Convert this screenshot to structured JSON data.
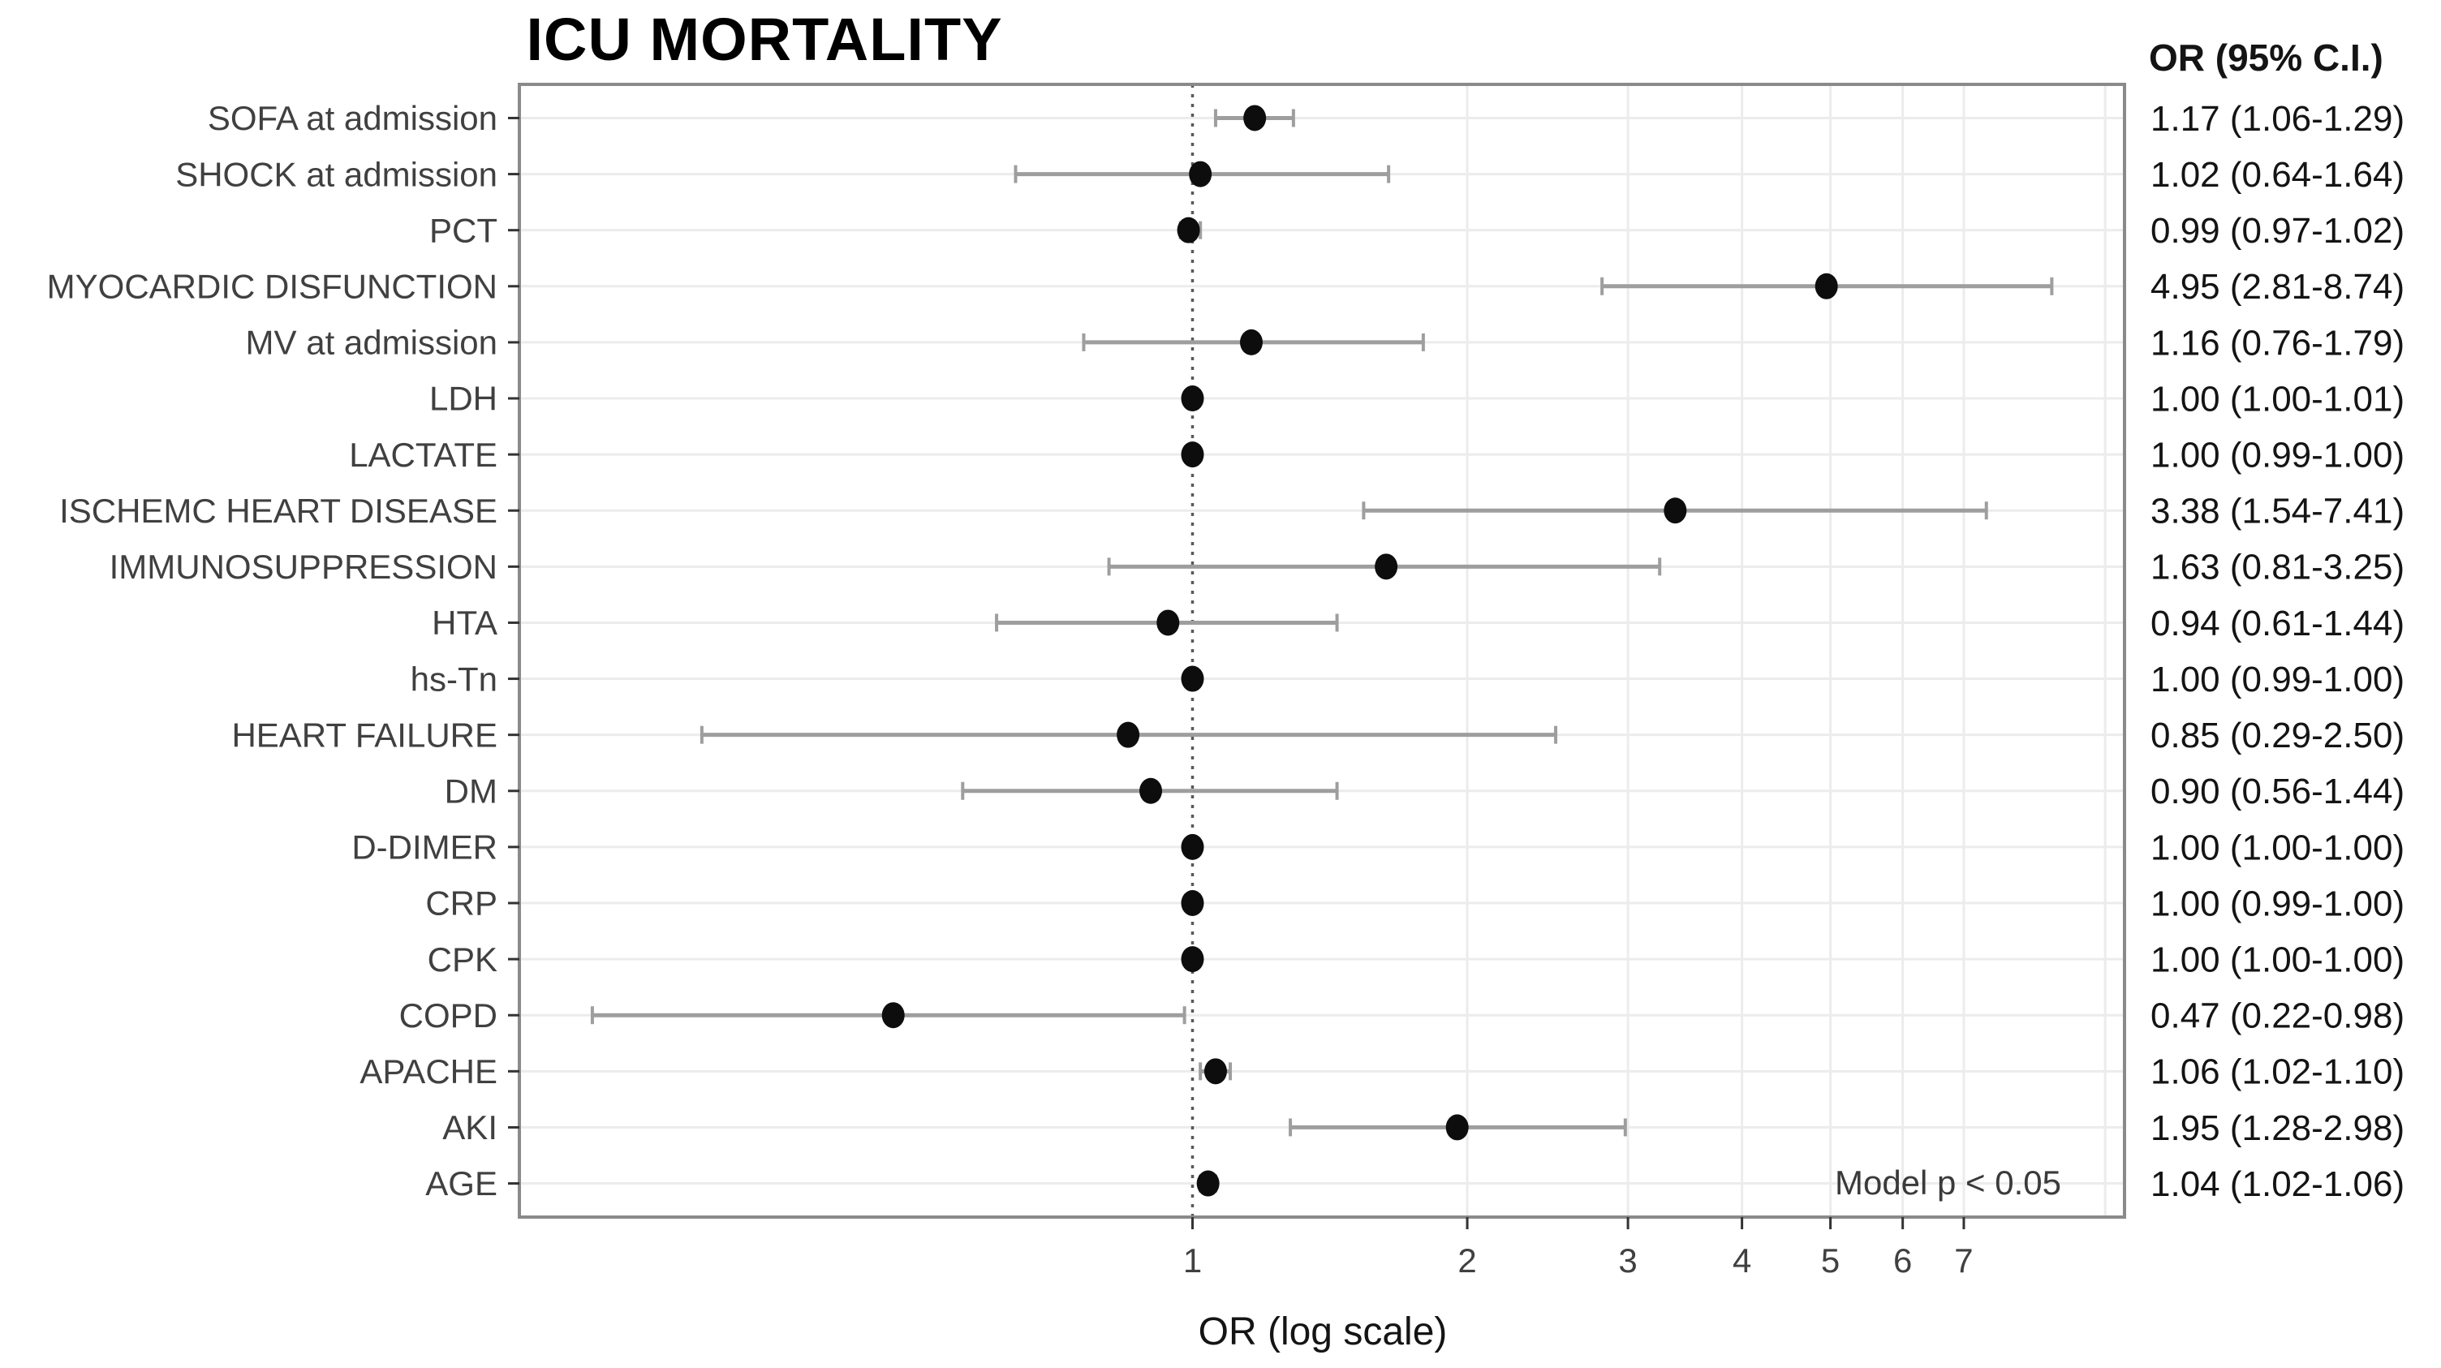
{
  "figure": {
    "title": "ICU MORTALITY",
    "x_axis_label": "OR (log scale)",
    "or_column_header": "OR (95% C.I.)",
    "model_annotation": "Model p < 0.05"
  },
  "chart_data": {
    "type": "scatter",
    "subtype": "forest-plot",
    "title": "ICU MORTALITY",
    "xlabel": "OR (log scale)",
    "ylabel": "",
    "x_scale": "log10",
    "xlim": [
      0.183,
      10.5
    ],
    "x_ticks": [
      1,
      2,
      3,
      4,
      5,
      6,
      7
    ],
    "vertical_gridlines": [
      2,
      3,
      4,
      5,
      6,
      7,
      10
    ],
    "reference_line": 1,
    "grid": true,
    "legend": "none",
    "or_column_header": "OR (95% C.I.)",
    "annotation": "Model p < 0.05",
    "rows": [
      {
        "label": "SOFA at admission",
        "or": 1.17,
        "ci_low": 1.06,
        "ci_high": 1.29,
        "display": "1.17 (1.06-1.29)"
      },
      {
        "label": "SHOCK at admission",
        "or": 1.02,
        "ci_low": 0.64,
        "ci_high": 1.64,
        "display": "1.02 (0.64-1.64)"
      },
      {
        "label": "PCT",
        "or": 0.99,
        "ci_low": 0.97,
        "ci_high": 1.02,
        "display": "0.99 (0.97-1.02)"
      },
      {
        "label": "MYOCARDIC DISFUNCTION",
        "or": 4.95,
        "ci_low": 2.81,
        "ci_high": 8.74,
        "display": "4.95 (2.81-8.74)"
      },
      {
        "label": "MV at admission",
        "or": 1.16,
        "ci_low": 0.76,
        "ci_high": 1.79,
        "display": "1.16 (0.76-1.79)"
      },
      {
        "label": "LDH",
        "or": 1.0,
        "ci_low": 1.0,
        "ci_high": 1.01,
        "display": "1.00 (1.00-1.01)"
      },
      {
        "label": "LACTATE",
        "or": 1.0,
        "ci_low": 0.99,
        "ci_high": 1.0,
        "display": "1.00 (0.99-1.00)"
      },
      {
        "label": "ISCHEMC HEART DISEASE",
        "or": 3.38,
        "ci_low": 1.54,
        "ci_high": 7.41,
        "display": "3.38 (1.54-7.41)"
      },
      {
        "label": "IMMUNOSUPPRESSION",
        "or": 1.63,
        "ci_low": 0.81,
        "ci_high": 3.25,
        "display": "1.63 (0.81-3.25)"
      },
      {
        "label": "HTA",
        "or": 0.94,
        "ci_low": 0.61,
        "ci_high": 1.44,
        "display": "0.94 (0.61-1.44)"
      },
      {
        "label": "hs-Tn",
        "or": 1.0,
        "ci_low": 0.99,
        "ci_high": 1.0,
        "display": "1.00 (0.99-1.00)"
      },
      {
        "label": "HEART FAILURE",
        "or": 0.85,
        "ci_low": 0.29,
        "ci_high": 2.5,
        "display": "0.85 (0.29-2.50)"
      },
      {
        "label": "DM",
        "or": 0.9,
        "ci_low": 0.56,
        "ci_high": 1.44,
        "display": "0.90 (0.56-1.44)"
      },
      {
        "label": "D-DIMER",
        "or": 1.0,
        "ci_low": 1.0,
        "ci_high": 1.0,
        "display": "1.00 (1.00-1.00)"
      },
      {
        "label": "CRP",
        "or": 1.0,
        "ci_low": 0.99,
        "ci_high": 1.0,
        "display": "1.00 (0.99-1.00)"
      },
      {
        "label": "CPK",
        "or": 1.0,
        "ci_low": 1.0,
        "ci_high": 1.0,
        "display": "1.00 (1.00-1.00)"
      },
      {
        "label": "COPD",
        "or": 0.47,
        "ci_low": 0.22,
        "ci_high": 0.98,
        "display": "0.47 (0.22-0.98)"
      },
      {
        "label": "APACHE",
        "or": 1.06,
        "ci_low": 1.02,
        "ci_high": 1.1,
        "display": "1.06 (1.02-1.10)"
      },
      {
        "label": "AKI",
        "or": 1.95,
        "ci_low": 1.28,
        "ci_high": 2.98,
        "display": "1.95 (1.28-2.98)"
      },
      {
        "label": "AGE",
        "or": 1.04,
        "ci_low": 1.02,
        "ci_high": 1.06,
        "display": "1.04 (1.02-1.06)"
      }
    ]
  },
  "colors": {
    "point": "#0d0d0d",
    "error_bar": "#9e9e9e",
    "grid": "#ececec",
    "panel_border": "#8a8a8a",
    "reference_line": "#595959",
    "axis_text": "#404040",
    "tick": "#333333",
    "value_text": "#141414",
    "background": "#ffffff"
  }
}
